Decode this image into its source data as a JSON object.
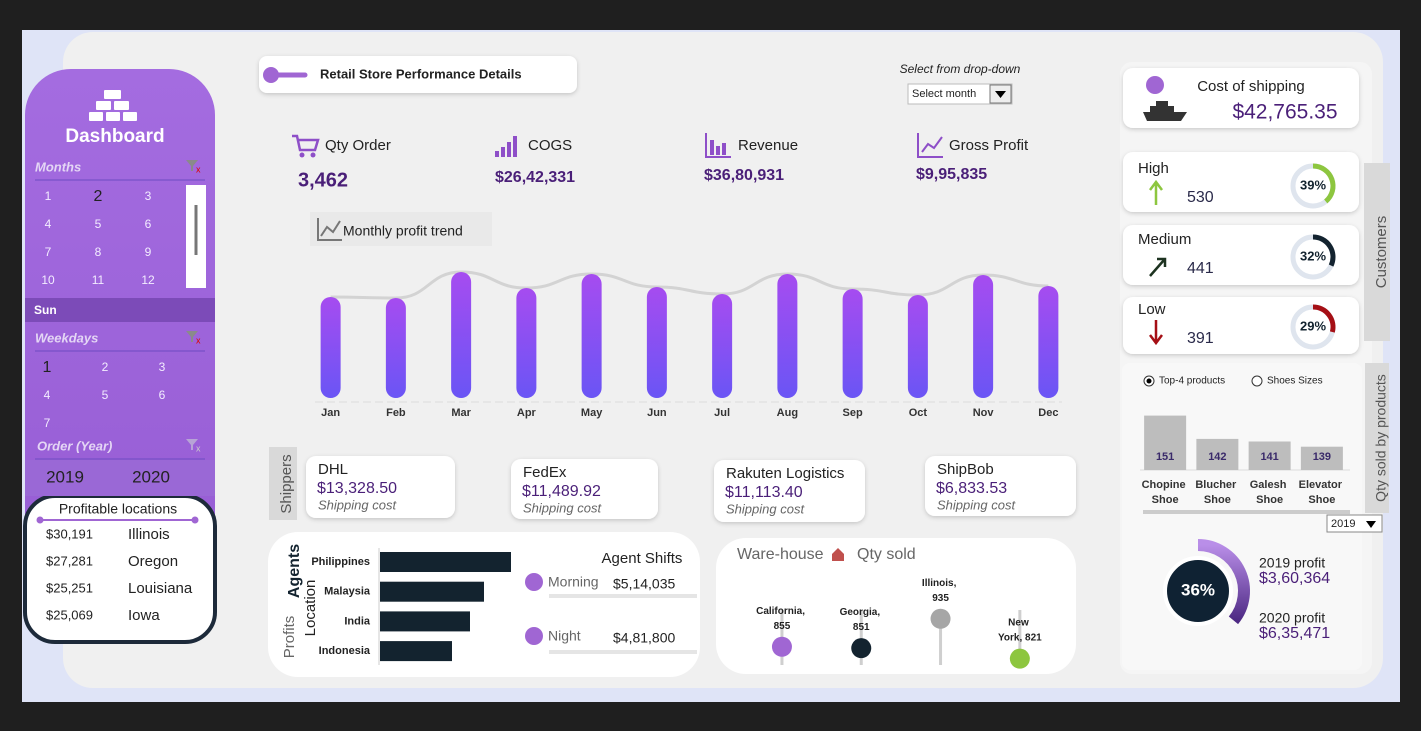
{
  "sidebar": {
    "title": "Dashboard",
    "months_label": "Months",
    "months": [
      "1",
      "2",
      "3",
      "4",
      "5",
      "6",
      "7",
      "8",
      "9",
      "10",
      "11",
      "12"
    ],
    "selected_day": "Sun",
    "weekdays_label": "Weekdays",
    "weekdays": [
      "1",
      "2",
      "3",
      "4",
      "5",
      "6",
      "7"
    ],
    "year_label": "Order (Year)",
    "years": [
      "2019",
      "2020"
    ],
    "locations_title": "Profitable locations",
    "locations": [
      [
        "$30,191",
        "Illinois"
      ],
      [
        "$27,281",
        "Oregon"
      ],
      [
        "$25,251",
        "Louisiana"
      ],
      [
        "$25,069",
        "Iowa"
      ]
    ]
  },
  "header": {
    "title": "Retail Store Performance Details",
    "dropdown_label": "Select from drop-down",
    "dropdown_value": "Select month"
  },
  "kpis": [
    {
      "label": "Qty Order",
      "value": "3,462"
    },
    {
      "label": "COGS",
      "value": "$26,42,331"
    },
    {
      "label": "Revenue",
      "value": "$36,80,931"
    },
    {
      "label": "Gross Profit",
      "value": "$9,95,835"
    }
  ],
  "shippers": {
    "label": "Shippers",
    "items": [
      {
        "name": "DHL",
        "cost": "$13,328.50",
        "note": "Shipping cost"
      },
      {
        "name": "FedEx",
        "cost": "$11,489.92",
        "note": "Shipping cost"
      },
      {
        "name": "Rakuten Logistics",
        "cost": "$11,113.40",
        "note": "Shipping cost"
      },
      {
        "name": "ShipBob",
        "cost": "$6,833.53",
        "note": "Shipping cost"
      }
    ]
  },
  "agent_shifts": {
    "title": "Agent Shifts",
    "items": [
      {
        "name": "Morning",
        "value": "$5,14,035"
      },
      {
        "name": "Night",
        "value": "$4,81,800"
      }
    ]
  },
  "shipping_cost": {
    "label": "Cost of shipping",
    "value": "$42,765.35"
  },
  "customers_label": "Customers",
  "products": {
    "label": "Qty sold by products",
    "options": [
      "Top-4 products",
      "Shoes Sizes"
    ],
    "year": "2019"
  },
  "profit": [
    {
      "label": "2019 profit",
      "value": "$3,60,364"
    },
    {
      "label": "2020 profit",
      "value": "$6,35,471"
    }
  ],
  "chart_data": [
    {
      "type": "bar",
      "title": "Monthly profit trend",
      "categories": [
        "Jan",
        "Feb",
        "Mar",
        "Apr",
        "May",
        "Jun",
        "Jul",
        "Aug",
        "Sep",
        "Oct",
        "Nov",
        "Dec"
      ],
      "values": [
        101,
        100,
        126,
        110,
        124,
        111,
        104,
        124,
        109,
        103,
        123,
        112
      ],
      "color": "#8b4ff0"
    },
    {
      "type": "hbar",
      "title": "Agents",
      "y_label": "Location",
      "x_label": "Profits",
      "categories": [
        "Philippines",
        "Malaysia",
        "India",
        "Indonesia"
      ],
      "values": [
        131,
        104,
        90,
        72
      ],
      "color": "#13232f"
    },
    {
      "type": "lollipop",
      "title": "Ware-house",
      "subtitle": "Qty sold",
      "categories": [
        "California",
        "Georgia",
        "Illinois",
        "New York"
      ],
      "values": [
        855,
        851,
        935,
        821
      ],
      "value_labels": [
        "California, 855",
        "Georgia, 851",
        "Illinois, 935",
        "New York, 821"
      ],
      "colors": [
        "#a066d3",
        "#13232f",
        "#a6a6a6",
        "#8dc63f"
      ],
      "ylim": [
        760,
        960
      ]
    },
    {
      "type": "gauge",
      "categories": [
        "High",
        "Medium",
        "Low"
      ],
      "counts": [
        "530",
        "441",
        "391"
      ],
      "values": [
        39,
        32,
        29
      ],
      "value_labels": [
        "39%",
        "32%",
        "29%"
      ],
      "colors": [
        "#8dc63f",
        "#13232f",
        "#a50f15"
      ]
    },
    {
      "type": "bar",
      "categories": [
        "Chopine Shoe",
        "Blucher Shoe",
        "Galesh Shoe",
        "Elevator Shoe"
      ],
      "values": [
        151,
        142,
        141,
        139
      ],
      "ylim": [
        130,
        152
      ],
      "color": "#bdbdbd"
    },
    {
      "type": "gauge",
      "values": [
        36
      ],
      "value_labels": [
        "36%"
      ],
      "colors": [
        "#7b4fc9"
      ]
    }
  ]
}
